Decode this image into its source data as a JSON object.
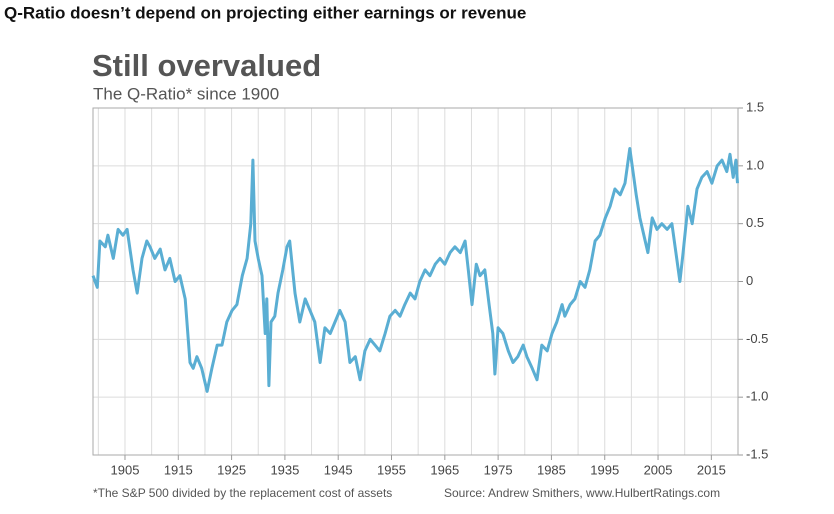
{
  "headline": "Q-Ratio doesn’t depend on projecting either earnings or revenue",
  "chart_data": {
    "type": "line",
    "title": "Still overvalued",
    "subtitle": "The Q-Ratio* since 1900",
    "note": "*The S&P 500 divided by the replacement cost of assets",
    "source": "Source: Andrew Smithers, www.HulbertRatings.com",
    "xlim": [
      1899,
      2020
    ],
    "xticks": [
      1905,
      1915,
      1925,
      1935,
      1945,
      1955,
      1965,
      1975,
      1985,
      1995,
      2005,
      2015
    ],
    "xgrid": [
      1900,
      1905,
      1910,
      1915,
      1920,
      1925,
      1930,
      1935,
      1940,
      1945,
      1950,
      1955,
      1960,
      1965,
      1970,
      1975,
      1980,
      1985,
      1990,
      1995,
      2000,
      2005,
      2010,
      2015
    ],
    "ylim": [
      -1.5,
      1.5
    ],
    "yticks": [
      1.5,
      {
        "value": 1,
        "label": "1.0"
      },
      0.5,
      0,
      -0.5,
      {
        "value": -1,
        "label": "-1.0"
      },
      -1.5
    ],
    "grid": true,
    "series": [
      {
        "name": "Q-Ratio",
        "color": "#5aaed3",
        "x": [
          1899.0,
          1899.8,
          1900.3,
          1901.3,
          1901.8,
          1902.8,
          1903.7,
          1904.6,
          1905.4,
          1906.5,
          1907.3,
          1908.2,
          1909.1,
          1909.7,
          1910.6,
          1911.6,
          1912.5,
          1913.4,
          1914.4,
          1915.3,
          1916.3,
          1917.2,
          1917.8,
          1918.5,
          1919.4,
          1920.4,
          1921.3,
          1922.3,
          1923.2,
          1924.1,
          1925.1,
          1926.0,
          1927.0,
          1927.9,
          1928.6,
          1929.0,
          1929.4,
          1930.0,
          1930.7,
          1931.3,
          1931.6,
          1932.0,
          1932.4,
          1933.1,
          1933.7,
          1934.6,
          1935.4,
          1935.9,
          1936.9,
          1937.8,
          1938.8,
          1939.7,
          1940.6,
          1941.6,
          1942.5,
          1943.5,
          1944.4,
          1945.3,
          1946.3,
          1947.2,
          1948.2,
          1949.1,
          1950.0,
          1951.0,
          1951.9,
          1952.8,
          1953.8,
          1954.7,
          1955.7,
          1956.6,
          1957.5,
          1958.5,
          1959.4,
          1960.3,
          1961.3,
          1962.2,
          1963.2,
          1964.1,
          1965.0,
          1966.0,
          1966.9,
          1967.9,
          1968.8,
          1969.4,
          1970.1,
          1970.9,
          1971.6,
          1972.5,
          1973.3,
          1974.0,
          1974.4,
          1975.0,
          1975.9,
          1976.9,
          1977.8,
          1978.7,
          1979.7,
          1980.4,
          1981.4,
          1982.3,
          1983.2,
          1984.2,
          1985.1,
          1986.0,
          1987.0,
          1987.5,
          1988.5,
          1989.4,
          1990.4,
          1991.3,
          1992.2,
          1993.2,
          1994.1,
          1995.1,
          1996.0,
          1996.9,
          1997.9,
          1998.8,
          1999.7,
          2000.3,
          2000.9,
          2001.6,
          2002.6,
          2003.1,
          2003.9,
          2004.8,
          2005.7,
          2006.7,
          2007.6,
          2008.2,
          2009.1,
          2009.7,
          2010.6,
          2011.4,
          2012.3,
          2013.2,
          2014.2,
          2015.1,
          2016.1,
          2017.0,
          2017.9,
          2018.5,
          2019.1,
          2019.6,
          2019.9
        ],
        "values": [
          0.05,
          -0.05,
          0.35,
          0.3,
          0.4,
          0.2,
          0.45,
          0.4,
          0.45,
          0.1,
          -0.1,
          0.2,
          0.35,
          0.3,
          0.2,
          0.28,
          0.1,
          0.2,
          0.0,
          0.05,
          -0.15,
          -0.7,
          -0.75,
          -0.65,
          -0.75,
          -0.95,
          -0.75,
          -0.55,
          -0.55,
          -0.35,
          -0.25,
          -0.2,
          0.05,
          0.2,
          0.5,
          1.05,
          0.35,
          0.2,
          0.05,
          -0.45,
          -0.15,
          -0.9,
          -0.35,
          -0.3,
          -0.1,
          0.1,
          0.3,
          0.35,
          -0.1,
          -0.35,
          -0.15,
          -0.25,
          -0.35,
          -0.7,
          -0.4,
          -0.45,
          -0.35,
          -0.25,
          -0.35,
          -0.7,
          -0.65,
          -0.85,
          -0.6,
          -0.5,
          -0.55,
          -0.6,
          -0.45,
          -0.3,
          -0.25,
          -0.3,
          -0.2,
          -0.1,
          -0.15,
          0.0,
          0.1,
          0.05,
          0.15,
          0.2,
          0.15,
          0.25,
          0.3,
          0.25,
          0.35,
          0.1,
          -0.2,
          0.15,
          0.05,
          0.1,
          -0.2,
          -0.45,
          -0.8,
          -0.4,
          -0.45,
          -0.6,
          -0.7,
          -0.65,
          -0.55,
          -0.65,
          -0.75,
          -0.85,
          -0.55,
          -0.6,
          -0.45,
          -0.35,
          -0.2,
          -0.3,
          -0.2,
          -0.15,
          0.0,
          -0.05,
          0.1,
          0.35,
          0.4,
          0.55,
          0.65,
          0.8,
          0.75,
          0.85,
          1.15,
          0.95,
          0.75,
          0.55,
          0.35,
          0.25,
          0.55,
          0.45,
          0.5,
          0.45,
          0.5,
          0.3,
          0.0,
          0.25,
          0.65,
          0.5,
          0.8,
          0.9,
          0.95,
          0.85,
          1.0,
          1.05,
          0.95,
          1.1,
          0.9,
          1.05,
          0.85
        ]
      }
    ]
  }
}
